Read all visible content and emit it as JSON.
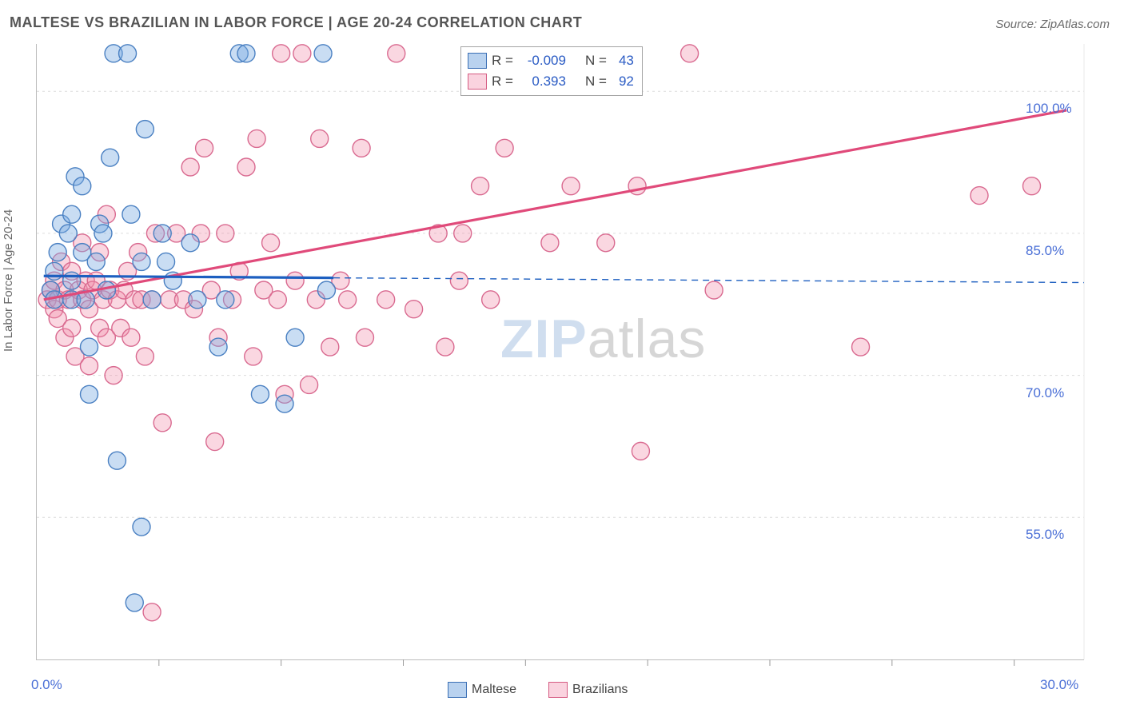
{
  "title": "MALTESE VS BRAZILIAN IN LABOR FORCE | AGE 20-24 CORRELATION CHART",
  "source_prefix": "Source: ",
  "source": "ZipAtlas.com",
  "ylabel": "In Labor Force | Age 20-24",
  "watermark_zip": "ZIP",
  "watermark_atlas": "atlas",
  "chart": {
    "type": "scatter",
    "background_color": "#ffffff",
    "grid_color": "#dcdcdc",
    "xlim": [
      0,
      30
    ],
    "ylim": [
      40,
      105
    ],
    "xticks_major": [
      0,
      30
    ],
    "xticks_minor": [
      3.5,
      7,
      10.5,
      14,
      17.5,
      21,
      24.5,
      28
    ],
    "yticks": [
      55,
      70,
      85,
      100
    ],
    "ytick_labels": [
      "55.0%",
      "70.0%",
      "85.0%",
      "100.0%"
    ],
    "xtick_labels": [
      "0.0%",
      "30.0%"
    ],
    "marker_radius": 11,
    "marker_stroke_width": 1.4,
    "series": {
      "maltese": {
        "label": "Maltese",
        "fill": "rgba(120,170,225,0.40)",
        "stroke": "#4a80c2",
        "R": "-0.009",
        "N": "43",
        "trend": {
          "x1": 0.2,
          "y1": 80.5,
          "x2": 8.5,
          "y2": 80.3,
          "ext_x2": 30,
          "ext_y2": 79.8,
          "solid_color": "#1d5fc0",
          "solid_width": 3.2,
          "dash_color": "#1d5fc0",
          "dash_width": 1.4,
          "dash": "8,6"
        },
        "points": [
          [
            0.4,
            79
          ],
          [
            0.5,
            81
          ],
          [
            0.5,
            78
          ],
          [
            0.6,
            83
          ],
          [
            0.7,
            86
          ],
          [
            0.9,
            85
          ],
          [
            1.0,
            80
          ],
          [
            1.0,
            78
          ],
          [
            1.0,
            87
          ],
          [
            1.1,
            91
          ],
          [
            1.3,
            90
          ],
          [
            1.3,
            83
          ],
          [
            1.4,
            78
          ],
          [
            1.5,
            73
          ],
          [
            1.5,
            68
          ],
          [
            1.7,
            82
          ],
          [
            1.8,
            86
          ],
          [
            1.9,
            85
          ],
          [
            2.0,
            79
          ],
          [
            2.1,
            93
          ],
          [
            2.2,
            104
          ],
          [
            2.3,
            61
          ],
          [
            2.6,
            104
          ],
          [
            2.7,
            87
          ],
          [
            2.8,
            46
          ],
          [
            3.0,
            82
          ],
          [
            3.0,
            54
          ],
          [
            3.1,
            96
          ],
          [
            3.3,
            78
          ],
          [
            3.6,
            85
          ],
          [
            3.7,
            82
          ],
          [
            4.4,
            84
          ],
          [
            4.6,
            78
          ],
          [
            5.2,
            73
          ],
          [
            5.4,
            78
          ],
          [
            5.8,
            104
          ],
          [
            6.0,
            104
          ],
          [
            6.4,
            68
          ],
          [
            7.1,
            67
          ],
          [
            7.4,
            74
          ],
          [
            8.2,
            104
          ],
          [
            8.3,
            79
          ],
          [
            3.9,
            80
          ]
        ]
      },
      "brazilians": {
        "label": "Brazilians",
        "fill": "rgba(240,140,170,0.35)",
        "stroke": "#d96a90",
        "R": "0.393",
        "N": "92",
        "trend": {
          "x1": 0.2,
          "y1": 78,
          "x2": 29.5,
          "y2": 98,
          "solid_color": "#e04a7a",
          "solid_width": 3.2
        },
        "points": [
          [
            0.3,
            78
          ],
          [
            0.4,
            79
          ],
          [
            0.5,
            77
          ],
          [
            0.5,
            80
          ],
          [
            0.6,
            78
          ],
          [
            0.6,
            76
          ],
          [
            0.7,
            82
          ],
          [
            0.8,
            79
          ],
          [
            0.8,
            74
          ],
          [
            0.9,
            78
          ],
          [
            1.0,
            81
          ],
          [
            1.0,
            75
          ],
          [
            1.1,
            72
          ],
          [
            1.2,
            79
          ],
          [
            1.3,
            78
          ],
          [
            1.3,
            84
          ],
          [
            1.4,
            80
          ],
          [
            1.5,
            77
          ],
          [
            1.5,
            71
          ],
          [
            1.6,
            79
          ],
          [
            1.7,
            80
          ],
          [
            1.8,
            75
          ],
          [
            1.8,
            83
          ],
          [
            1.9,
            78
          ],
          [
            2.0,
            74
          ],
          [
            2.0,
            87
          ],
          [
            2.1,
            79
          ],
          [
            2.2,
            70
          ],
          [
            2.3,
            78
          ],
          [
            2.4,
            75
          ],
          [
            2.5,
            79
          ],
          [
            2.6,
            81
          ],
          [
            2.7,
            74
          ],
          [
            2.8,
            78
          ],
          [
            2.9,
            83
          ],
          [
            3.0,
            78
          ],
          [
            3.1,
            72
          ],
          [
            3.3,
            78
          ],
          [
            3.3,
            45
          ],
          [
            3.4,
            85
          ],
          [
            3.6,
            65
          ],
          [
            3.8,
            78
          ],
          [
            4.0,
            85
          ],
          [
            4.2,
            78
          ],
          [
            4.4,
            92
          ],
          [
            4.5,
            77
          ],
          [
            4.7,
            85
          ],
          [
            4.8,
            94
          ],
          [
            5.0,
            79
          ],
          [
            5.1,
            63
          ],
          [
            5.2,
            74
          ],
          [
            5.4,
            85
          ],
          [
            5.6,
            78
          ],
          [
            5.8,
            81
          ],
          [
            6.0,
            92
          ],
          [
            6.2,
            72
          ],
          [
            6.3,
            95
          ],
          [
            6.5,
            79
          ],
          [
            6.7,
            84
          ],
          [
            6.9,
            78
          ],
          [
            7.0,
            104
          ],
          [
            7.1,
            68
          ],
          [
            7.4,
            80
          ],
          [
            7.6,
            104
          ],
          [
            7.8,
            69
          ],
          [
            8.0,
            78
          ],
          [
            8.1,
            95
          ],
          [
            8.4,
            73
          ],
          [
            8.7,
            80
          ],
          [
            8.9,
            78
          ],
          [
            9.3,
            94
          ],
          [
            9.4,
            74
          ],
          [
            10.0,
            78
          ],
          [
            10.3,
            104
          ],
          [
            10.8,
            77
          ],
          [
            11.5,
            85
          ],
          [
            11.7,
            73
          ],
          [
            12.1,
            80
          ],
          [
            12.2,
            85
          ],
          [
            12.7,
            90
          ],
          [
            13.0,
            78
          ],
          [
            13.4,
            94
          ],
          [
            14.7,
            84
          ],
          [
            15.3,
            90
          ],
          [
            16.3,
            84
          ],
          [
            17.2,
            90
          ],
          [
            17.3,
            62
          ],
          [
            18.7,
            104
          ],
          [
            19.4,
            79
          ],
          [
            23.6,
            73
          ],
          [
            27.0,
            89
          ],
          [
            28.5,
            90
          ]
        ]
      }
    }
  },
  "stats_legend": {
    "R_label": "R =",
    "N_label": "N ="
  },
  "bottom_legend": {
    "maltese": "Maltese",
    "brazilians": "Brazilians"
  }
}
